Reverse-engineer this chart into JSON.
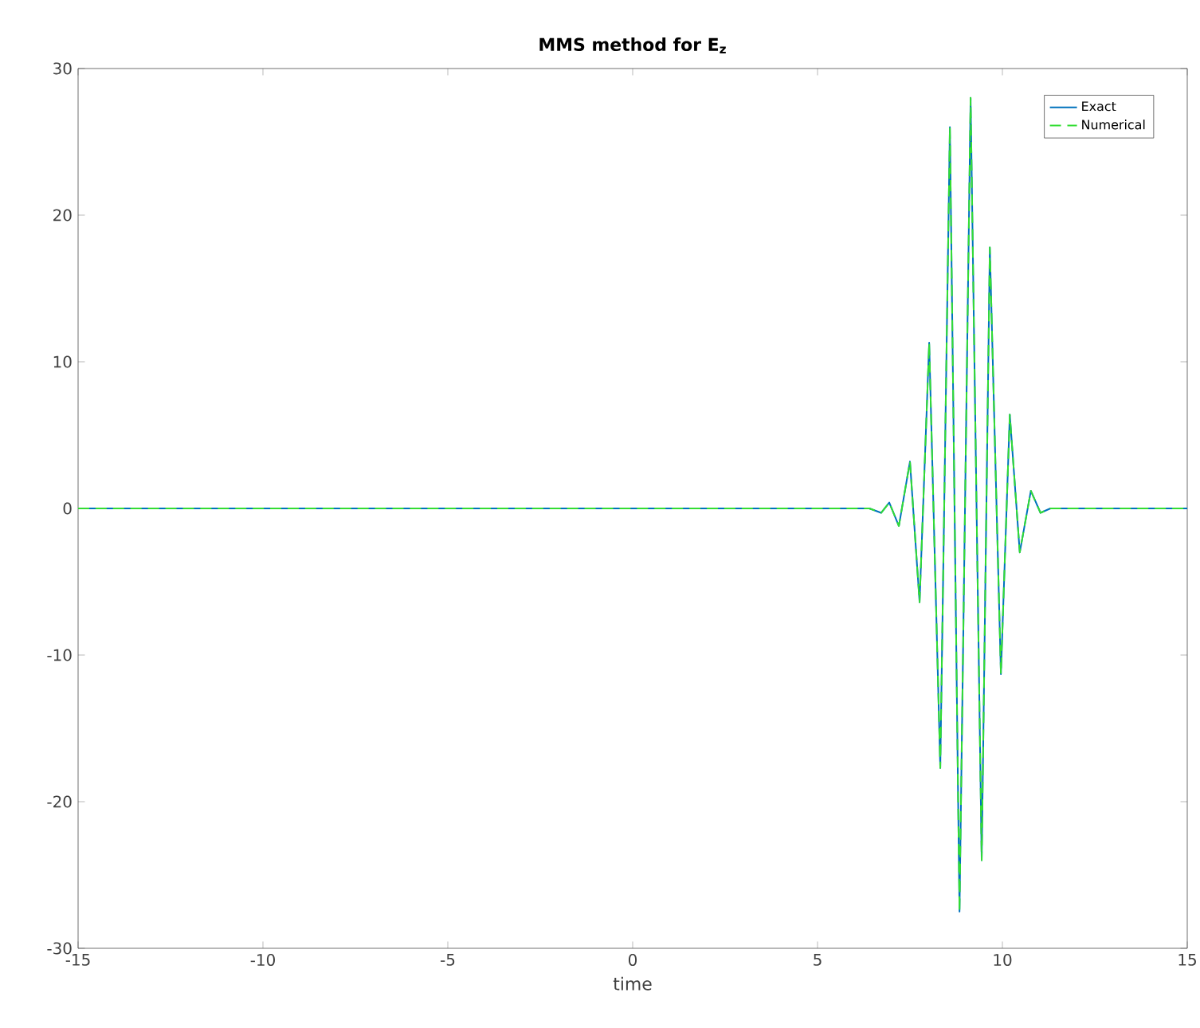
{
  "chart_data": {
    "type": "line",
    "title": "MMS method for E$_{z}$",
    "xlabel": "time",
    "x": [
      -15,
      6.4,
      6.72,
      6.94,
      7.2,
      7.5,
      7.76,
      8.02,
      8.32,
      8.58,
      8.84,
      9.14,
      9.44,
      9.66,
      9.96,
      10.2,
      10.47,
      10.77,
      11.03,
      11.3,
      15
    ],
    "series": [
      {
        "name": "Exact",
        "color": "#0072bd",
        "line_style": "solid",
        "values": [
          0,
          0,
          -0.3,
          0.4,
          -1.2,
          3.2,
          -6.4,
          11.3,
          -17.7,
          26,
          -27.5,
          28,
          -24,
          17.8,
          -11.3,
          6.4,
          -3,
          1.2,
          -0.3,
          0,
          0
        ]
      },
      {
        "name": "Numerical",
        "color": "#33dd33",
        "line_style": "dashed",
        "values": [
          0,
          0,
          -0.3,
          0.4,
          -1.2,
          3.2,
          -6.4,
          11.3,
          -17.7,
          26,
          -27.5,
          28,
          -24,
          17.8,
          -11.3,
          6.4,
          -3,
          1.2,
          -0.3,
          0,
          0
        ]
      }
    ],
    "xlim": [
      -15,
      15
    ],
    "ylim": [
      -30,
      30
    ],
    "xticks": [
      -15,
      -10,
      -5,
      0,
      5,
      10,
      15
    ],
    "yticks": [
      -30,
      -20,
      -10,
      0,
      10,
      20,
      30
    ],
    "grid": false,
    "legend": "top right",
    "marker": "none"
  }
}
